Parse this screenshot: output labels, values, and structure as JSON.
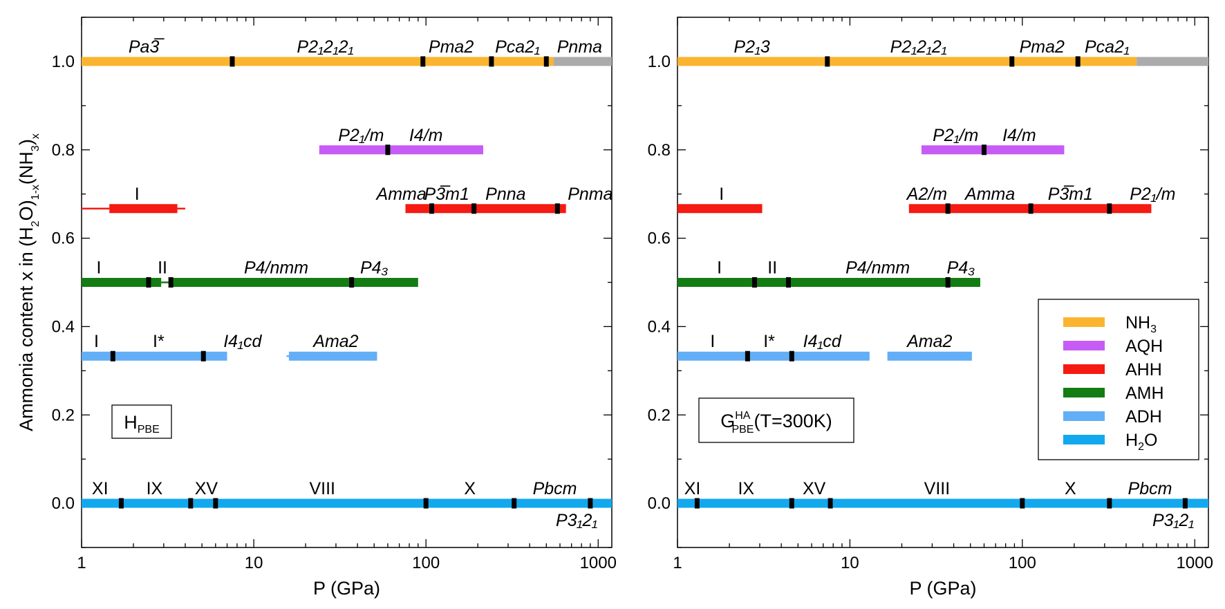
{
  "figure": {
    "ylabel_html": "Ammonia content x in (H<tspan baseline-shift='sub' class='sub'>2</tspan>O)<tspan baseline-shift='sub' class='sub'>1-x</tspan>(NH<tspan baseline-shift='sub' class='sub'>3</tspan>)<tspan baseline-shift='sub' class='sub'>x</tspan>"
  },
  "colors": {
    "NH3": "#fbb430",
    "AQH": "#c65cf5",
    "AHH": "#f51a12",
    "AMH": "#137c13",
    "ADH": "#62aef7",
    "H2O": "#12a8ee",
    "grey": "#ababab"
  },
  "chart_data": [
    {
      "type": "bar",
      "xscale": "log",
      "xlabel": "P (GPa)",
      "ylabel": "Ammonia content x in (H2O)1-x(NH3)x",
      "xlim": [
        1,
        1200
      ],
      "ylim": [
        -0.1,
        1.1
      ],
      "xticks": [
        "1",
        "10",
        "100",
        "1000"
      ],
      "yticks": [
        "0.0",
        "0.2",
        "0.4",
        "0.6",
        "0.8",
        "1.0"
      ],
      "panel_label": "H",
      "panel_label_sub": "PBE",
      "panel_label_sup": "",
      "panel_label_suffix": "",
      "legend": null,
      "series": [
        {
          "name": "NH3",
          "y": 1.0,
          "segments": [
            [
              1,
              550
            ]
          ],
          "grey": [
            [
              550,
              1200
            ]
          ],
          "thin": [],
          "boundaries": [
            7.5,
            96,
            240,
            500
          ],
          "labels": [
            {
              "x": 2.3,
              "text": "Pa3̅",
              "italic": true
            },
            {
              "x": 26,
              "text": "P2₁2₁2₁",
              "italic": true
            },
            {
              "x": 140,
              "text": "Pma2",
              "italic": true
            },
            {
              "x": 340,
              "text": "Pca2₁",
              "italic": true
            },
            {
              "x": 780,
              "text": "Pnma",
              "italic": true
            }
          ]
        },
        {
          "name": "AQH",
          "y": 0.8,
          "segments": [
            [
              24,
              215
            ]
          ],
          "grey": [],
          "thin": [],
          "boundaries": [
            60
          ],
          "labels": [
            {
              "x": 42,
              "text": "P2₁/m",
              "italic": true
            },
            {
              "x": 100,
              "text": "I4/m",
              "italic": true
            }
          ]
        },
        {
          "name": "AHH",
          "y": 0.667,
          "segments": [
            [
              1.45,
              3.6
            ],
            [
              76,
              650
            ]
          ],
          "grey": [],
          "thin": [
            [
              1,
              1.45
            ],
            [
              3.6,
              4
            ]
          ],
          "boundaries": [
            108,
            190,
            580
          ],
          "labels": [
            {
              "x": 2.1,
              "text": "I",
              "italic": false
            },
            {
              "x": 72,
              "text": "Amma",
              "italic": true
            },
            {
              "x": 132,
              "text": "P3̅m1",
              "italic": true
            },
            {
              "x": 290,
              "text": "Pnna",
              "italic": true
            },
            {
              "x": 900,
              "text": "Pnma",
              "italic": true
            }
          ]
        },
        {
          "name": "AMH",
          "y": 0.5,
          "segments": [
            [
              1,
              2.9
            ],
            [
              3.25,
              90
            ]
          ],
          "grey": [],
          "thin": [
            [
              2.9,
              3.25
            ]
          ],
          "boundaries": [
            2.45,
            3.3,
            37
          ],
          "labels": [
            {
              "x": 1.26,
              "text": "I",
              "italic": false
            },
            {
              "x": 2.95,
              "text": "II",
              "italic": false
            },
            {
              "x": 13.5,
              "text": "P4/nmm",
              "italic": true
            },
            {
              "x": 50,
              "text": "P4₃",
              "italic": true
            }
          ]
        },
        {
          "name": "ADH",
          "y": 0.333,
          "segments": [
            [
              1,
              7
            ],
            [
              16,
              52
            ]
          ],
          "grey": [],
          "thin": [
            [
              15.5,
              16
            ]
          ],
          "boundaries": [
            1.52,
            5.1
          ],
          "labels": [
            {
              "x": 1.22,
              "text": "I",
              "italic": false
            },
            {
              "x": 2.8,
              "text": "I*",
              "italic": false
            },
            {
              "x": 8.6,
              "text": "I4₁cd",
              "italic": true
            },
            {
              "x": 30,
              "text": "Ama2",
              "italic": true
            }
          ]
        },
        {
          "name": "H2O",
          "y": 0.0,
          "segments": [
            [
              1,
              1200
            ]
          ],
          "grey": [],
          "thin": [],
          "boundaries": [
            1.7,
            4.3,
            6,
            100,
            325,
            900
          ],
          "labels": [
            {
              "x": 1.28,
              "text": "XI",
              "italic": false
            },
            {
              "x": 2.65,
              "text": "IX",
              "italic": false
            },
            {
              "x": 5.3,
              "text": "XV",
              "italic": false
            },
            {
              "x": 25,
              "text": "VIII",
              "italic": false
            },
            {
              "x": 180,
              "text": "X",
              "italic": false
            },
            {
              "x": 560,
              "text": "Pbcm",
              "italic": true
            }
          ]
        }
      ],
      "bottom_label": {
        "x": 750,
        "text": "P3₁2₁",
        "italic": true
      }
    },
    {
      "type": "bar",
      "xscale": "log",
      "xlabel": "P (GPa)",
      "ylabel": "",
      "xlim": [
        1,
        1200
      ],
      "ylim": [
        -0.1,
        1.1
      ],
      "xticks": [
        "1",
        "10",
        "100",
        "1000"
      ],
      "yticks": [
        "0.0",
        "0.2",
        "0.4",
        "0.6",
        "0.8",
        "1.0"
      ],
      "panel_label": "G",
      "panel_label_sub": "PBE",
      "panel_label_sup": "HA",
      "panel_label_suffix": "(T=300K)",
      "legend": {
        "location": "lower-right",
        "entries": [
          {
            "key": "NH3",
            "label": "NH",
            "sub": "3"
          },
          {
            "key": "AQH",
            "label": "AQH",
            "sub": ""
          },
          {
            "key": "AHH",
            "label": "AHH",
            "sub": ""
          },
          {
            "key": "AMH",
            "label": "AMH",
            "sub": ""
          },
          {
            "key": "ADH",
            "label": "ADH",
            "sub": ""
          },
          {
            "key": "H2O",
            "label": "H",
            "sub": "2",
            "suffix": "O"
          }
        ]
      },
      "series": [
        {
          "name": "NH3",
          "y": 1.0,
          "segments": [
            [
              1,
              460
            ]
          ],
          "grey": [
            [
              460,
              1200
            ]
          ],
          "thin": [],
          "boundaries": [
            7.4,
            87,
            210
          ],
          "labels": [
            {
              "x": 2.7,
              "text": "P2₁3",
              "italic": true
            },
            {
              "x": 25,
              "text": "P2₁2₁2₁",
              "italic": true
            },
            {
              "x": 130,
              "text": "Pma2",
              "italic": true
            },
            {
              "x": 310,
              "text": "Pca2₁",
              "italic": true
            }
          ]
        },
        {
          "name": "AQH",
          "y": 0.8,
          "segments": [
            [
              26,
              175
            ]
          ],
          "grey": [],
          "thin": [],
          "boundaries": [
            60
          ],
          "labels": [
            {
              "x": 41,
              "text": "P2₁/m",
              "italic": true
            },
            {
              "x": 96,
              "text": "I4/m",
              "italic": true
            }
          ]
        },
        {
          "name": "AHH",
          "y": 0.667,
          "segments": [
            [
              1,
              3.1
            ],
            [
              22,
              560
            ]
          ],
          "grey": [],
          "thin": [],
          "boundaries": [
            37,
            112,
            320
          ],
          "labels": [
            {
              "x": 1.8,
              "text": "I",
              "italic": false
            },
            {
              "x": 28,
              "text": "A2/m",
              "italic": true
            },
            {
              "x": 65,
              "text": "Amma",
              "italic": true
            },
            {
              "x": 190,
              "text": "P3̅m1",
              "italic": true
            },
            {
              "x": 570,
              "text": "P2₁/m",
              "italic": true
            }
          ]
        },
        {
          "name": "AMH",
          "y": 0.5,
          "segments": [
            [
              1,
              57
            ]
          ],
          "grey": [],
          "thin": [],
          "boundaries": [
            2.8,
            4.4,
            37
          ],
          "labels": [
            {
              "x": 1.75,
              "text": "I",
              "italic": false
            },
            {
              "x": 3.55,
              "text": "II",
              "italic": false
            },
            {
              "x": 14.5,
              "text": "P4/nmm",
              "italic": true
            },
            {
              "x": 44,
              "text": "P4₃",
              "italic": true
            }
          ]
        },
        {
          "name": "ADH",
          "y": 0.333,
          "segments": [
            [
              1,
              13
            ],
            [
              16.5,
              51
            ]
          ],
          "grey": [],
          "thin": [],
          "boundaries": [
            2.55,
            4.6
          ],
          "labels": [
            {
              "x": 1.6,
              "text": "I",
              "italic": false
            },
            {
              "x": 3.4,
              "text": "I*",
              "italic": false
            },
            {
              "x": 6.9,
              "text": "I4₁cd",
              "italic": true
            },
            {
              "x": 29,
              "text": "Ama2",
              "italic": true
            }
          ]
        },
        {
          "name": "H2O",
          "y": 0.0,
          "segments": [
            [
              1,
              1200
            ]
          ],
          "grey": [],
          "thin": [],
          "boundaries": [
            1.3,
            4.6,
            7.7,
            100,
            320,
            880
          ],
          "labels": [
            {
              "x": 1.22,
              "text": "XI",
              "italic": false
            },
            {
              "x": 2.5,
              "text": "IX",
              "italic": false
            },
            {
              "x": 6.2,
              "text": "XV",
              "italic": false
            },
            {
              "x": 32,
              "text": "VIII",
              "italic": false
            },
            {
              "x": 190,
              "text": "X",
              "italic": false
            },
            {
              "x": 550,
              "text": "Pbcm",
              "italic": true
            }
          ]
        }
      ],
      "bottom_label": {
        "x": 750,
        "text": "P3₁2₁",
        "italic": true
      }
    }
  ]
}
